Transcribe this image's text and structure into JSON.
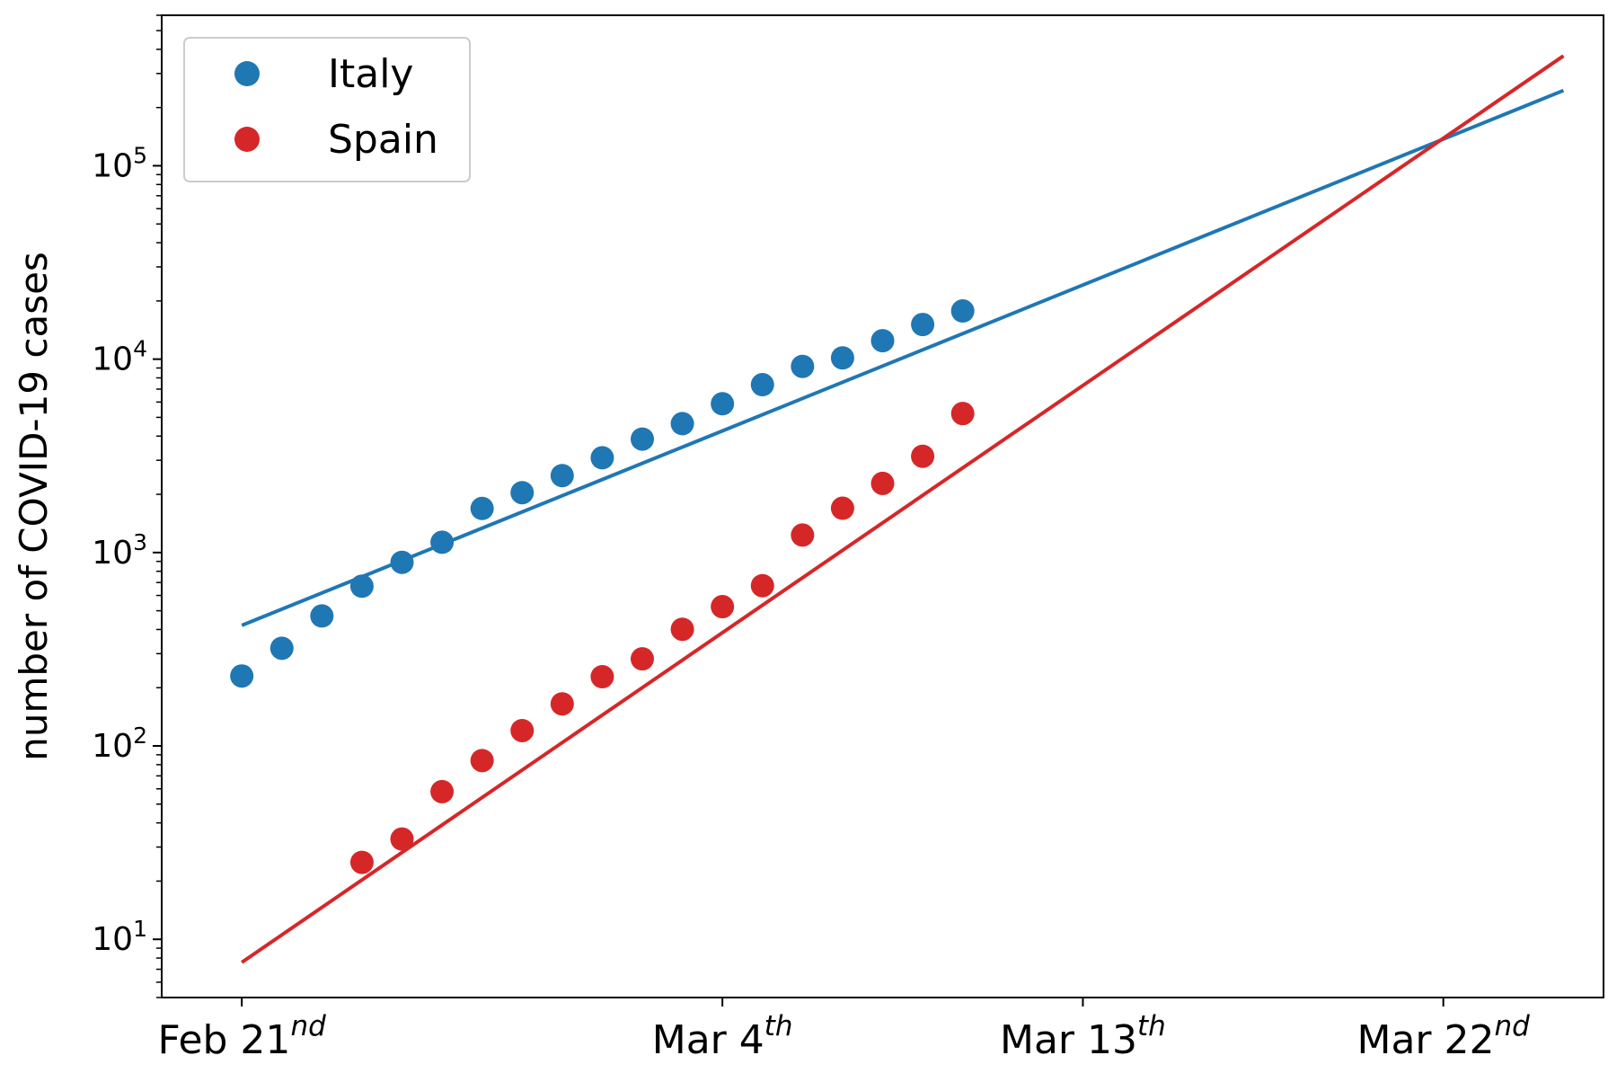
{
  "chart_data": {
    "type": "scatter",
    "title": "",
    "xlabel": "",
    "ylabel": "number of COVID-19 cases",
    "yscale": "log",
    "grid": false,
    "legend_position": "top-left",
    "x_range": [
      "2020-02-19",
      "2020-03-26"
    ],
    "ylim": [
      5,
      600000
    ],
    "x_ticks": [
      {
        "date": "2020-02-21",
        "label_main": "Feb 21",
        "label_sup": "nd"
      },
      {
        "date": "2020-03-04",
        "label_main": "Mar 4",
        "label_sup": "th"
      },
      {
        "date": "2020-03-13",
        "label_main": "Mar 13",
        "label_sup": "th"
      },
      {
        "date": "2020-03-22",
        "label_main": "Mar 22",
        "label_sup": "nd"
      }
    ],
    "y_ticks": [
      {
        "value": 10,
        "label_base": "10",
        "label_exp": "1"
      },
      {
        "value": 100,
        "label_base": "10",
        "label_exp": "2"
      },
      {
        "value": 1000,
        "label_base": "10",
        "label_exp": "3"
      },
      {
        "value": 10000,
        "label_base": "10",
        "label_exp": "4"
      },
      {
        "value": 100000,
        "label_base": "10",
        "label_exp": "5"
      }
    ],
    "series": [
      {
        "name": "Italy",
        "color": "#1f77b4",
        "points": [
          {
            "x": "2020-02-21",
            "y": 230
          },
          {
            "x": "2020-02-22",
            "y": 320
          },
          {
            "x": "2020-02-23",
            "y": 470
          },
          {
            "x": "2020-02-24",
            "y": 670
          },
          {
            "x": "2020-02-25",
            "y": 890
          },
          {
            "x": "2020-02-26",
            "y": 1130
          },
          {
            "x": "2020-02-27",
            "y": 1690
          },
          {
            "x": "2020-02-28",
            "y": 2040
          },
          {
            "x": "2020-02-29",
            "y": 2500
          },
          {
            "x": "2020-03-01",
            "y": 3090
          },
          {
            "x": "2020-03-02",
            "y": 3860
          },
          {
            "x": "2020-03-03",
            "y": 4640
          },
          {
            "x": "2020-03-04",
            "y": 5880
          },
          {
            "x": "2020-03-05",
            "y": 7380
          },
          {
            "x": "2020-03-06",
            "y": 9170
          },
          {
            "x": "2020-03-07",
            "y": 10150
          },
          {
            "x": "2020-03-08",
            "y": 12460
          },
          {
            "x": "2020-03-09",
            "y": 15110
          },
          {
            "x": "2020-03-10",
            "y": 17750
          }
        ],
        "fit": [
          {
            "x": "2020-02-21",
            "y": 420
          },
          {
            "x": "2020-03-25",
            "y": 245000
          }
        ]
      },
      {
        "name": "Spain",
        "color": "#d62728",
        "points": [
          {
            "x": "2020-02-24",
            "y": 25
          },
          {
            "x": "2020-02-25",
            "y": 33
          },
          {
            "x": "2020-02-26",
            "y": 58
          },
          {
            "x": "2020-02-27",
            "y": 84
          },
          {
            "x": "2020-02-28",
            "y": 120
          },
          {
            "x": "2020-02-29",
            "y": 165
          },
          {
            "x": "2020-03-01",
            "y": 228
          },
          {
            "x": "2020-03-02",
            "y": 282
          },
          {
            "x": "2020-03-03",
            "y": 401
          },
          {
            "x": "2020-03-04",
            "y": 525
          },
          {
            "x": "2020-03-05",
            "y": 674
          },
          {
            "x": "2020-03-06",
            "y": 1231
          },
          {
            "x": "2020-03-07",
            "y": 1695
          },
          {
            "x": "2020-03-08",
            "y": 2277
          },
          {
            "x": "2020-03-09",
            "y": 3146
          },
          {
            "x": "2020-03-10",
            "y": 5232
          }
        ],
        "fit": [
          {
            "x": "2020-02-21",
            "y": 7.6
          },
          {
            "x": "2020-03-25",
            "y": 370000
          }
        ]
      }
    ]
  }
}
